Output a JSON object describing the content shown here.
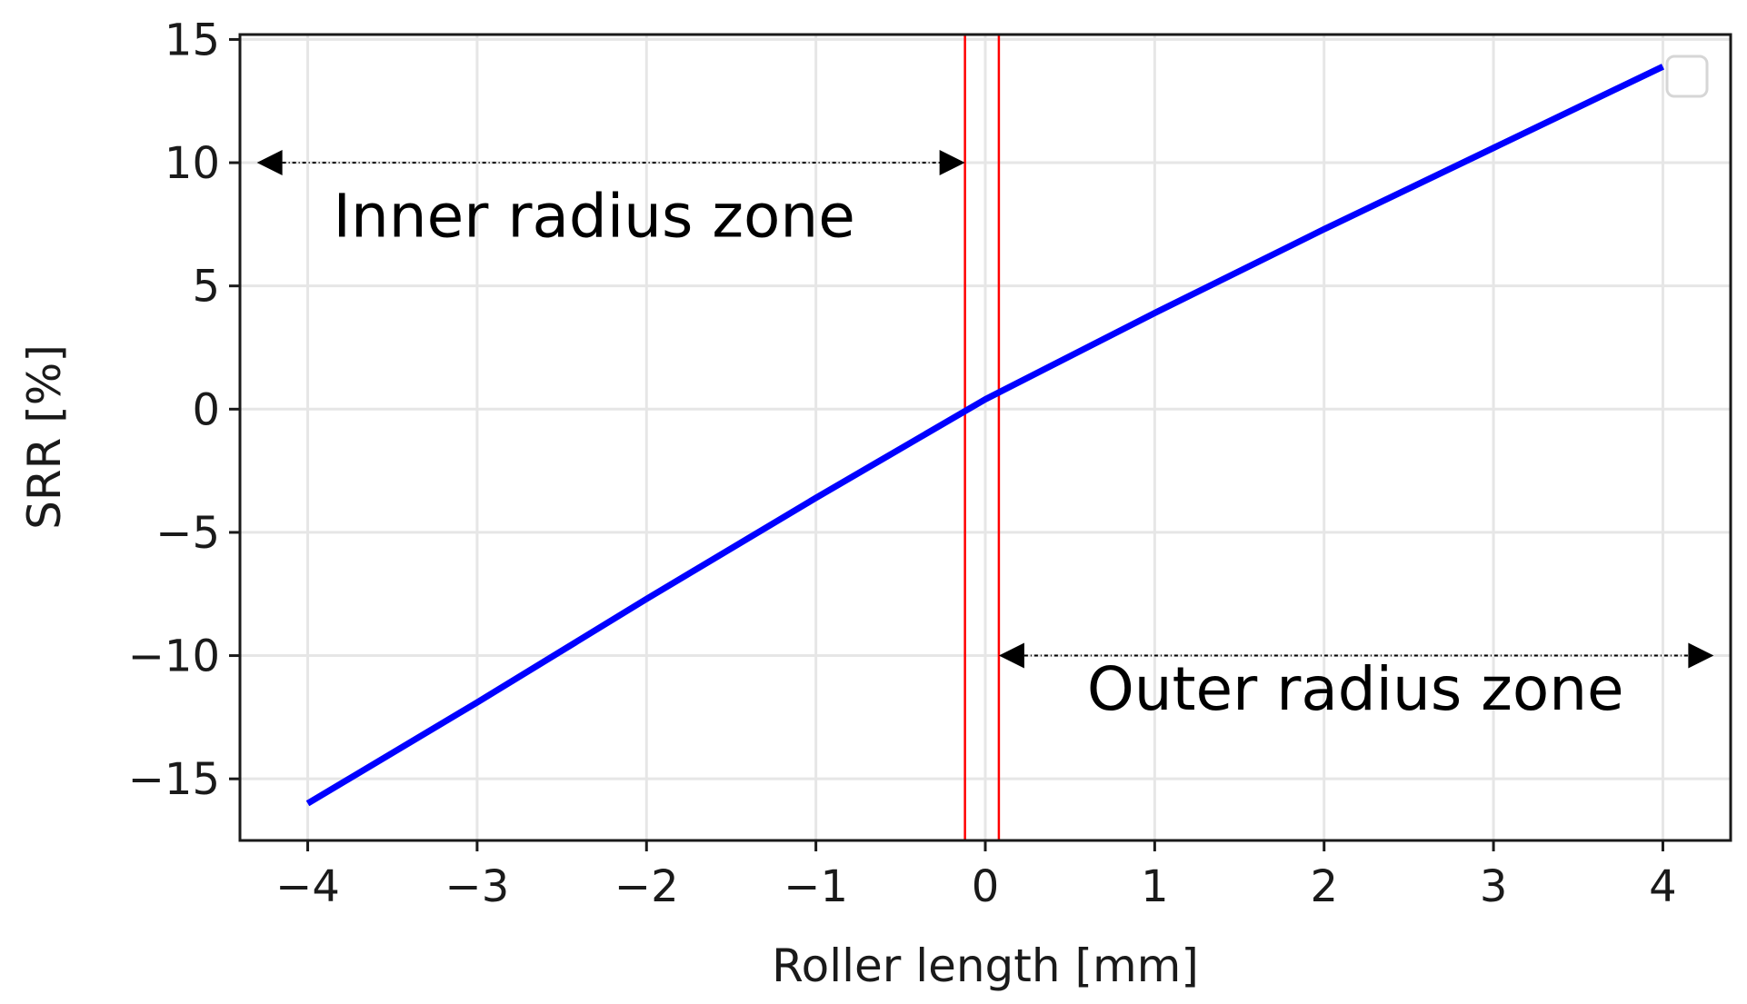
{
  "chart_data": {
    "type": "line",
    "xlabel": "Roller length [mm]",
    "ylabel": "SRR [%]",
    "xlim": [
      -4.4,
      4.4
    ],
    "ylim": [
      -17.5,
      15.2
    ],
    "x_ticks": [
      -4,
      -3,
      -2,
      -1,
      0,
      1,
      2,
      3,
      4
    ],
    "x_tick_labels": [
      "−4",
      "−3",
      "−2",
      "−1",
      "0",
      "1",
      "2",
      "3",
      "4"
    ],
    "y_ticks": [
      -15,
      -10,
      -5,
      0,
      5,
      10,
      15
    ],
    "y_tick_labels": [
      "−15",
      "−10",
      "−5",
      "0",
      "5",
      "10",
      "15"
    ],
    "grid": true,
    "series": [
      {
        "color": "#0000ff",
        "x": [
          -4,
          -3,
          -2,
          -1,
          0,
          1,
          2,
          3,
          4
        ],
        "y": [
          -16.0,
          -11.9,
          -7.7,
          -3.6,
          0.4,
          3.9,
          7.3,
          10.6,
          13.9
        ]
      }
    ],
    "vertical_lines": [
      {
        "x": -0.12,
        "color": "#ff0000"
      },
      {
        "x": 0.08,
        "color": "#ff0000"
      }
    ],
    "arrows": [
      {
        "x_start": -4.3,
        "x_end": -0.12,
        "y": 10
      },
      {
        "x_start": 0.08,
        "x_end": 4.3,
        "y": -10
      }
    ],
    "annotations": [
      {
        "text": "Inner radius zone",
        "x": -3.85,
        "y": 7.0
      },
      {
        "text": "Outer radius zone",
        "x": 0.6,
        "y": -12.2
      }
    ],
    "legend": "top-right",
    "legend_entries": []
  }
}
